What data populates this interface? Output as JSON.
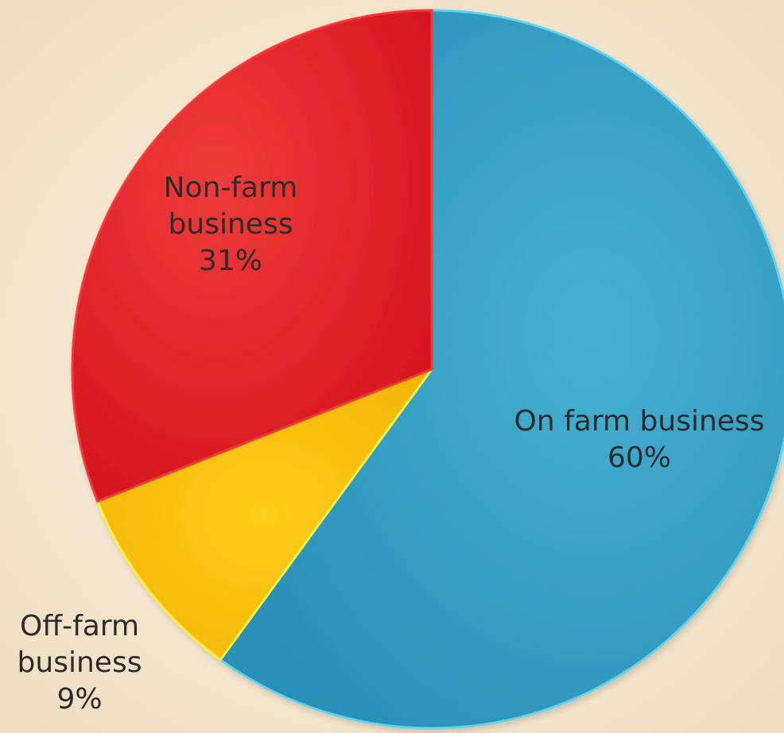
{
  "chart_data": {
    "type": "pie",
    "title": "",
    "start_angle_deg": 0,
    "direction": "clockwise",
    "slices": [
      {
        "id": "on-farm",
        "category": "On farm business",
        "label_lines": [
          "On farm business"
        ],
        "pct_label": "60%",
        "value": 60,
        "color": "#2f9bc2",
        "edge": "#5fd3ee"
      },
      {
        "id": "off-farm",
        "category": "Off-farm business",
        "label_lines": [
          "Off-farm",
          "business"
        ],
        "pct_label": "9%",
        "value": 9,
        "color": "#f5b800",
        "edge": "#fff040"
      },
      {
        "id": "non-farm",
        "category": "Non-farm business",
        "label_lines": [
          "Non-farm",
          "business"
        ],
        "pct_label": "31%",
        "value": 31,
        "color": "#e01b22",
        "edge": "#f03a3a"
      }
    ],
    "legend": "none",
    "data_labels": true
  }
}
